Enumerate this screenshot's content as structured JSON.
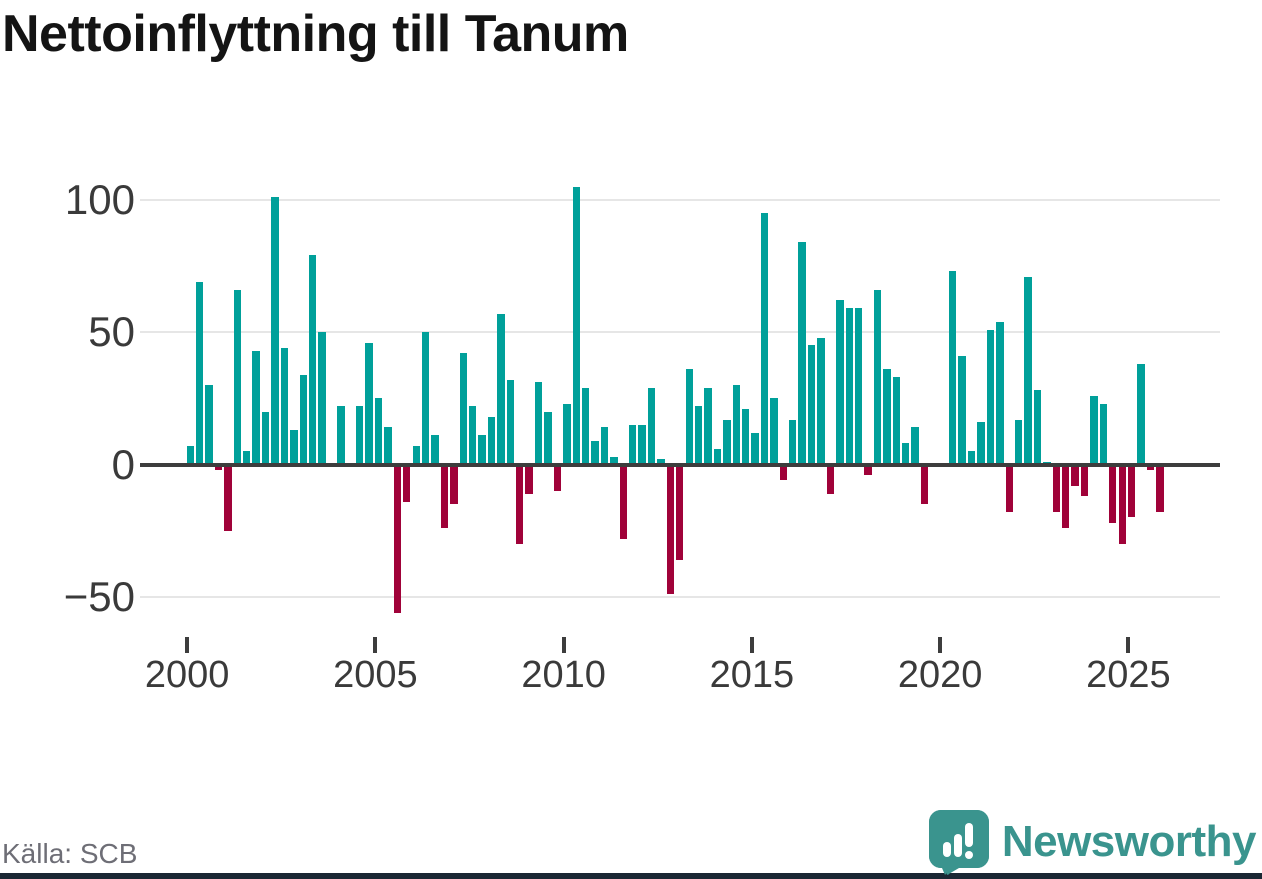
{
  "chart_data": {
    "type": "bar",
    "title": "Nettoinflyttning till Tanum",
    "source": "Källa: SCB",
    "frequency": "quarterly",
    "xlabel": "",
    "ylabel": "",
    "ylim": [
      -60,
      110
    ],
    "grid": "horizontal",
    "yticks": [
      100,
      50,
      0,
      -50
    ],
    "ytick_labels": [
      "100",
      "50",
      "0",
      "−50"
    ],
    "xticks": [
      2000,
      2005,
      2010,
      2015,
      2020,
      2025
    ],
    "xtick_labels": [
      "2000",
      "2005",
      "2010",
      "2015",
      "2020",
      "2025"
    ],
    "colors": {
      "positive": "#00A09A",
      "negative": "#A00239",
      "gridline": "#e6e6e6",
      "axis": "#3d3d3d"
    },
    "series": [
      {
        "name": "Nettoinflyttning",
        "points": [
          [
            "2000Q1",
            7
          ],
          [
            "2000Q2",
            69
          ],
          [
            "2000Q3",
            30
          ],
          [
            "2000Q4",
            -2
          ],
          [
            "2001Q1",
            -25
          ],
          [
            "2001Q2",
            66
          ],
          [
            "2001Q3",
            5
          ],
          [
            "2001Q4",
            43
          ],
          [
            "2002Q1",
            20
          ],
          [
            "2002Q2",
            101
          ],
          [
            "2002Q3",
            44
          ],
          [
            "2002Q4",
            13
          ],
          [
            "2003Q1",
            34
          ],
          [
            "2003Q2",
            79
          ],
          [
            "2003Q3",
            50
          ],
          [
            "2003Q4",
            0
          ],
          [
            "2004Q1",
            22
          ],
          [
            "2004Q2",
            0
          ],
          [
            "2004Q3",
            22
          ],
          [
            "2004Q4",
            46
          ],
          [
            "2005Q1",
            25
          ],
          [
            "2005Q2",
            14
          ],
          [
            "2005Q3",
            -56
          ],
          [
            "2005Q4",
            -14
          ],
          [
            "2006Q1",
            7
          ],
          [
            "2006Q2",
            50
          ],
          [
            "2006Q3",
            11
          ],
          [
            "2006Q4",
            -24
          ],
          [
            "2007Q1",
            -15
          ],
          [
            "2007Q2",
            42
          ],
          [
            "2007Q3",
            22
          ],
          [
            "2007Q4",
            11
          ],
          [
            "2008Q1",
            18
          ],
          [
            "2008Q2",
            57
          ],
          [
            "2008Q3",
            32
          ],
          [
            "2008Q4",
            -30
          ],
          [
            "2009Q1",
            -11
          ],
          [
            "2009Q2",
            31
          ],
          [
            "2009Q3",
            20
          ],
          [
            "2009Q4",
            -10
          ],
          [
            "2010Q1",
            23
          ],
          [
            "2010Q2",
            105
          ],
          [
            "2010Q3",
            29
          ],
          [
            "2010Q4",
            9
          ],
          [
            "2011Q1",
            14
          ],
          [
            "2011Q2",
            3
          ],
          [
            "2011Q3",
            -28
          ],
          [
            "2011Q4",
            15
          ],
          [
            "2012Q1",
            15
          ],
          [
            "2012Q2",
            29
          ],
          [
            "2012Q3",
            2
          ],
          [
            "2012Q4",
            -49
          ],
          [
            "2013Q1",
            -36
          ],
          [
            "2013Q2",
            36
          ],
          [
            "2013Q3",
            22
          ],
          [
            "2013Q4",
            29
          ],
          [
            "2014Q1",
            6
          ],
          [
            "2014Q2",
            17
          ],
          [
            "2014Q3",
            30
          ],
          [
            "2014Q4",
            21
          ],
          [
            "2015Q1",
            12
          ],
          [
            "2015Q2",
            95
          ],
          [
            "2015Q3",
            25
          ],
          [
            "2015Q4",
            -6
          ],
          [
            "2016Q1",
            17
          ],
          [
            "2016Q2",
            84
          ],
          [
            "2016Q3",
            45
          ],
          [
            "2016Q4",
            48
          ],
          [
            "2017Q1",
            -11
          ],
          [
            "2017Q2",
            62
          ],
          [
            "2017Q3",
            59
          ],
          [
            "2017Q4",
            59
          ],
          [
            "2018Q1",
            -4
          ],
          [
            "2018Q2",
            66
          ],
          [
            "2018Q3",
            36
          ],
          [
            "2018Q4",
            33
          ],
          [
            "2019Q1",
            8
          ],
          [
            "2019Q2",
            14
          ],
          [
            "2019Q3",
            -15
          ],
          [
            "2019Q4",
            0
          ],
          [
            "2020Q1",
            0
          ],
          [
            "2020Q2",
            73
          ],
          [
            "2020Q3",
            41
          ],
          [
            "2020Q4",
            5
          ],
          [
            "2021Q1",
            16
          ],
          [
            "2021Q2",
            51
          ],
          [
            "2021Q3",
            54
          ],
          [
            "2021Q4",
            -18
          ],
          [
            "2022Q1",
            17
          ],
          [
            "2022Q2",
            71
          ],
          [
            "2022Q3",
            28
          ],
          [
            "2022Q4",
            1
          ],
          [
            "2023Q1",
            -18
          ],
          [
            "2023Q2",
            -24
          ],
          [
            "2023Q3",
            -8
          ],
          [
            "2023Q4",
            -12
          ],
          [
            "2024Q1",
            26
          ],
          [
            "2024Q2",
            23
          ],
          [
            "2024Q3",
            -22
          ],
          [
            "2024Q4",
            -30
          ],
          [
            "2025Q1",
            -20
          ],
          [
            "2025Q2",
            38
          ],
          [
            "2025Q3",
            -2
          ],
          [
            "2025Q4",
            -18
          ]
        ]
      }
    ]
  },
  "footer": {
    "source": "Källa: SCB",
    "brand": "Newsworthy",
    "brand_color": "#3A948E",
    "bottom_bar_color": "#1A2733"
  }
}
